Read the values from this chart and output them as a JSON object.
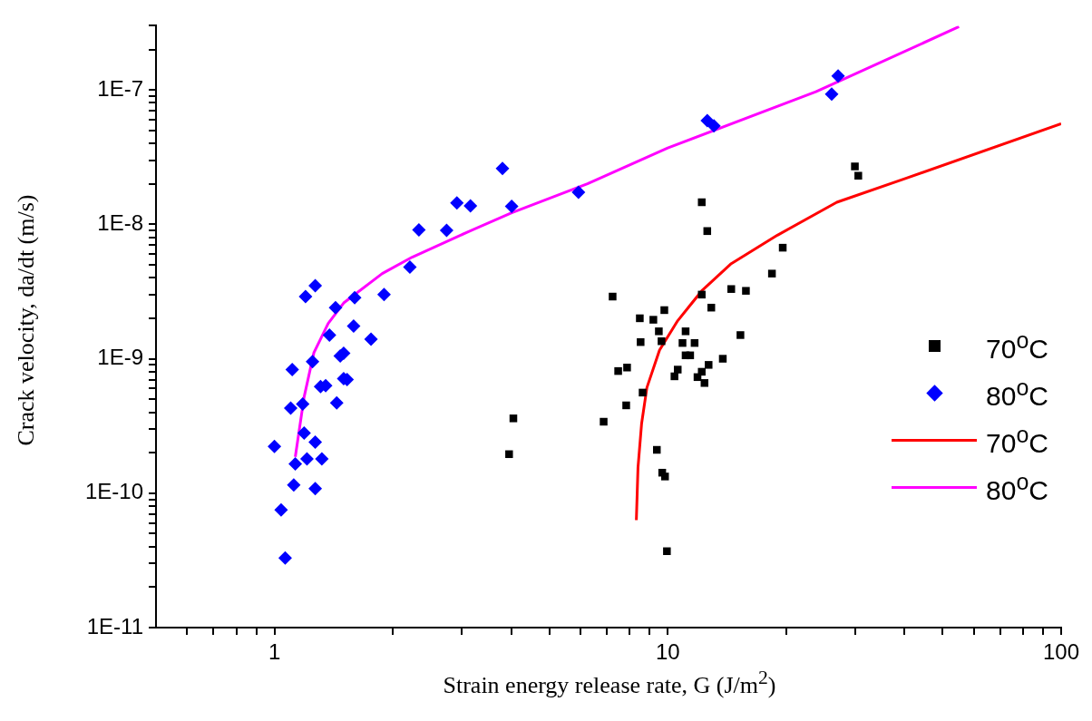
{
  "chart_data": {
    "type": "scatter",
    "xlabel": "Strain energy release rate, G (J/m$^{2}$)",
    "ylabel": "Crack velocity, da/dt (m/s)",
    "log": "xy",
    "legend": "right",
    "xlim": [
      0.5,
      100
    ],
    "ylim": [
      1e-11,
      3e-07
    ],
    "xticks": [
      {
        "value": 0.6,
        "label": null
      },
      {
        "value": 0.7,
        "label": null
      },
      {
        "value": 0.8,
        "label": null
      },
      {
        "value": 0.9,
        "label": null
      },
      1,
      {
        "value": 2,
        "label": null
      },
      {
        "value": 3,
        "label": null
      },
      {
        "value": 4,
        "label": null
      },
      {
        "value": 5,
        "label": null
      },
      {
        "value": 6,
        "label": null
      },
      {
        "value": 7,
        "label": null
      },
      {
        "value": 8,
        "label": null
      },
      {
        "value": 9,
        "label": null
      },
      10,
      {
        "value": 20,
        "label": null
      },
      {
        "value": 30,
        "label": null
      },
      {
        "value": 40,
        "label": null
      },
      {
        "value": 50,
        "label": null
      },
      {
        "value": 60,
        "label": null
      },
      {
        "value": 70,
        "label": null
      },
      {
        "value": 80,
        "label": null
      },
      {
        "value": 90,
        "label": null
      },
      100
    ],
    "yticks": [
      {
        "value": 1e-11,
        "label": "1E-11"
      },
      {
        "value": 2e-11,
        "label": null
      },
      {
        "value": 3e-11,
        "label": null
      },
      {
        "value": 4e-11,
        "label": null
      },
      {
        "value": 5e-11,
        "label": null
      },
      {
        "value": 6e-11,
        "label": null
      },
      {
        "value": 7e-11,
        "label": null
      },
      {
        "value": 8e-11,
        "label": null
      },
      {
        "value": 9e-11,
        "label": null
      },
      {
        "value": 1e-10,
        "label": "1E-10"
      },
      {
        "value": 2e-10,
        "label": null
      },
      {
        "value": 3e-10,
        "label": null
      },
      {
        "value": 4e-10,
        "label": null
      },
      {
        "value": 5e-10,
        "label": null
      },
      {
        "value": 6e-10,
        "label": null
      },
      {
        "value": 7e-10,
        "label": null
      },
      {
        "value": 8e-10,
        "label": null
      },
      {
        "value": 9e-10,
        "label": null
      },
      {
        "value": 1e-09,
        "label": "1E-9"
      },
      {
        "value": 2e-09,
        "label": null
      },
      {
        "value": 3e-09,
        "label": null
      },
      {
        "value": 4e-09,
        "label": null
      },
      {
        "value": 5e-09,
        "label": null
      },
      {
        "value": 6e-09,
        "label": null
      },
      {
        "value": 7e-09,
        "label": null
      },
      {
        "value": 8e-09,
        "label": null
      },
      {
        "value": 9e-09,
        "label": null
      },
      {
        "value": 1e-08,
        "label": "1E-8"
      },
      {
        "value": 2e-08,
        "label": null
      },
      {
        "value": 3e-08,
        "label": null
      },
      {
        "value": 4e-08,
        "label": null
      },
      {
        "value": 5e-08,
        "label": null
      },
      {
        "value": 6e-08,
        "label": null
      },
      {
        "value": 7e-08,
        "label": null
      },
      {
        "value": 8e-08,
        "label": null
      },
      {
        "value": 9e-08,
        "label": null
      },
      {
        "value": 1e-07,
        "label": "1E-7"
      },
      {
        "value": 2e-07,
        "label": null
      },
      {
        "value": 3e-07,
        "label": null
      }
    ],
    "series": [
      {
        "name": "70$^{o}$C",
        "type": "scatter",
        "marker": "square",
        "color": "#000000",
        "x": [
          12.2,
          12.6,
          19.6,
          18.4,
          14.5,
          15.8,
          12.2,
          12.9,
          7.24,
          9.8,
          8.49,
          9.19,
          9.49,
          9.64,
          8.53,
          11.1,
          10.9,
          11.7,
          15.3,
          11.1,
          11.4,
          13.8,
          12.7,
          10.6,
          10.4,
          12.2,
          11.9,
          12.4,
          7.88,
          7.48,
          8.63,
          7.84,
          6.87,
          4.05,
          3.95,
          9.38,
          9.68,
          9.84,
          9.95,
          30.5,
          29.9
        ],
        "values": [
          1.46e-08,
          8.9e-09,
          6.7e-09,
          4.3e-09,
          3.3e-09,
          3.2e-09,
          3e-09,
          2.4e-09,
          2.9e-09,
          2.3e-09,
          2e-09,
          1.95e-09,
          1.6e-09,
          1.35e-09,
          1.33e-09,
          1.6e-09,
          1.31e-09,
          1.31e-09,
          1.5e-09,
          1.06e-09,
          1.06e-09,
          1e-09,
          9e-10,
          8.3e-10,
          7.4e-10,
          8e-10,
          7.3e-10,
          6.6e-10,
          8.6e-10,
          8.1e-10,
          5.6e-10,
          4.5e-10,
          3.4e-10,
          3.6e-10,
          1.95e-10,
          2.1e-10,
          1.42e-10,
          1.33e-10,
          3.7e-11,
          2.3e-08,
          2.7e-08
        ]
      },
      {
        "name": "80$^{o}$C",
        "type": "scatter",
        "marker": "diamond",
        "color": "#0000ff",
        "x": [
          1.0,
          1.04,
          1.065,
          1.1,
          1.11,
          1.12,
          1.13,
          1.18,
          1.2,
          1.19,
          1.21,
          1.27,
          1.25,
          1.27,
          1.27,
          1.31,
          1.32,
          1.35,
          1.38,
          1.43,
          1.44,
          1.47,
          1.5,
          1.5,
          1.53,
          1.59,
          1.6,
          1.76,
          1.9,
          2.21,
          2.33,
          2.74,
          2.91,
          3.15,
          3.8,
          4.01,
          5.93,
          12.6,
          13.1,
          26.1,
          27.1
        ],
        "values": [
          2.23e-10,
          7.5e-11,
          3.3e-11,
          4.3e-10,
          8.3e-10,
          1.15e-10,
          1.65e-10,
          4.6e-10,
          2.9e-09,
          2.8e-10,
          1.8e-10,
          3.5e-09,
          9.5e-10,
          2.4e-10,
          1.08e-10,
          6.2e-10,
          1.8e-10,
          6.3e-10,
          1.5e-09,
          2.4e-09,
          4.7e-10,
          1.05e-09,
          1.1e-09,
          7.1e-10,
          7e-10,
          1.75e-09,
          2.85e-09,
          1.4e-09,
          3e-09,
          4.8e-09,
          9.1e-09,
          9e-09,
          1.44e-08,
          1.37e-08,
          2.6e-08,
          1.36e-08,
          1.73e-08,
          5.9e-08,
          5.4e-08,
          9.3e-08,
          1.27e-07
        ]
      },
      {
        "name": "70$^{o}$C",
        "type": "line",
        "marker": "none",
        "color": "#ff0000",
        "x": [
          8.32,
          8.4,
          8.58,
          8.85,
          9.53,
          10.6,
          12.2,
          14.5,
          19.0,
          26.9,
          40.3,
          100
        ],
        "values": [
          6.3e-11,
          1.55e-10,
          3.3e-10,
          6.1e-10,
          1.16e-09,
          1.92e-09,
          3.2e-09,
          5.1e-09,
          8.3e-09,
          1.46e-08,
          2.2e-08,
          5.6e-08
        ]
      },
      {
        "name": "80$^{o}$C",
        "type": "line",
        "marker": "none",
        "color": "#ff00ff",
        "x": [
          1.13,
          1.19,
          1.26,
          1.37,
          1.5,
          1.88,
          2.24,
          3.08,
          4.01,
          6.25,
          10.0,
          23.8,
          55
        ],
        "values": [
          1.86e-10,
          5.2e-10,
          1.11e-09,
          1.83e-09,
          2.6e-09,
          4.3e-09,
          5.7e-09,
          8.7e-09,
          1.22e-08,
          2e-08,
          3.7e-08,
          9.7e-08,
          2.95e-07
        ]
      }
    ]
  }
}
